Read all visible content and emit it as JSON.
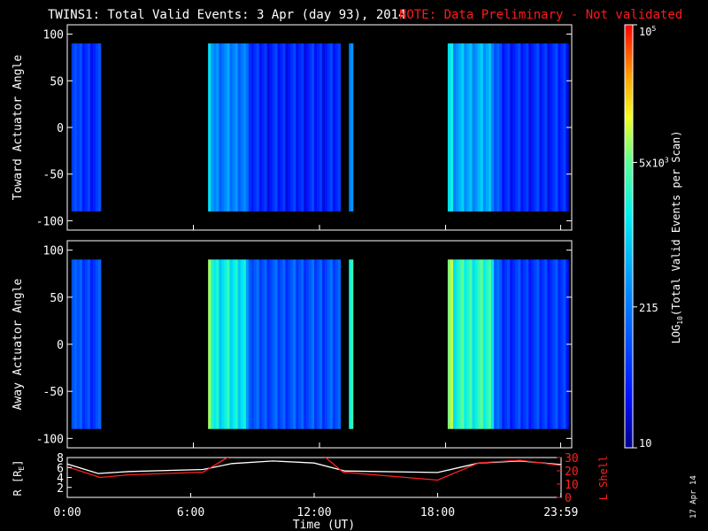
{
  "header": {
    "title": "TWINS1: Total Valid Events:  3 Apr (day  93), 2014",
    "note": "NOTE: Data Preliminary - Not validated",
    "note_color": "#ff1a1a"
  },
  "side_stamp": "17 Apr 14",
  "colorbar": {
    "label": "LOG10(Total Valid Events per Scan)",
    "label_main": "LOG",
    "label_sub": "10",
    "label_rest": "(Total Valid Events per Scan)",
    "ticks": [
      {
        "label": "10",
        "value": 10
      },
      {
        "label": "215",
        "value": 215
      },
      {
        "label": "5x10",
        "sup": "3",
        "value": 5000
      },
      {
        "label": "10",
        "sup": "5",
        "value": 100000
      }
    ],
    "range": [
      10,
      100000
    ],
    "scale": "log"
  },
  "chart_data": [
    {
      "type": "heatmap",
      "ylabel": "Toward Actuator Angle",
      "ylim": [
        -110,
        110
      ],
      "y_ticks": [
        100,
        50,
        0,
        -50,
        -100
      ],
      "x_ticks": [
        "0:00",
        "6:00",
        "12:00",
        "18:00",
        "23:59"
      ],
      "xlim_hours": [
        0,
        24
      ],
      "data_y_range": [
        -90,
        90
      ],
      "segments": [
        {
          "start_hour": 0.2,
          "end_hour": 1.6,
          "level": 0.18
        },
        {
          "start_hour": 6.7,
          "end_hour": 8.5,
          "level": 0.35
        },
        {
          "start_hour": 8.5,
          "end_hour": 13.0,
          "level": 0.16
        },
        {
          "start_hour": 13.4,
          "end_hour": 13.6,
          "level": 0.22
        },
        {
          "start_hour": 18.1,
          "end_hour": 20.3,
          "level": 0.42
        },
        {
          "start_hour": 20.3,
          "end_hour": 23.85,
          "level": 0.17
        }
      ]
    },
    {
      "type": "heatmap",
      "ylabel": "Away Actuator Angle",
      "ylim": [
        -110,
        110
      ],
      "y_ticks": [
        100,
        50,
        0,
        -50,
        -100
      ],
      "x_ticks": [
        "0:00",
        "6:00",
        "12:00",
        "18:00",
        "23:59"
      ],
      "xlim_hours": [
        0,
        24
      ],
      "data_y_range": [
        -90,
        90
      ],
      "segments": [
        {
          "start_hour": 0.2,
          "end_hour": 1.6,
          "level": 0.22
        },
        {
          "start_hour": 6.7,
          "end_hour": 8.5,
          "level": 0.55
        },
        {
          "start_hour": 8.5,
          "end_hour": 13.0,
          "level": 0.25
        },
        {
          "start_hour": 13.4,
          "end_hour": 13.6,
          "level": 0.45
        },
        {
          "start_hour": 18.1,
          "end_hour": 20.3,
          "level": 0.6
        },
        {
          "start_hour": 20.3,
          "end_hour": 23.85,
          "level": 0.2
        }
      ]
    },
    {
      "type": "line",
      "xlabel": "Time (UT)",
      "x_ticks": [
        "0:00",
        "6:00",
        "12:00",
        "18:00",
        "23:59"
      ],
      "xlim_hours": [
        0,
        24
      ],
      "left_axis": {
        "label": "R [RE]",
        "label_main": "R [R",
        "label_sub": "E",
        "label_end": "]",
        "ylim": [
          0,
          8
        ],
        "ticks": [
          8,
          6,
          4,
          2
        ]
      },
      "right_axis": {
        "label": "L Shell",
        "ylim": [
          0,
          30
        ],
        "ticks": [
          30,
          20,
          10,
          0
        ],
        "color": "#ff2020"
      },
      "series": [
        {
          "name": "R",
          "color": "#ffffff",
          "axis": "left",
          "x": [
            0,
            1.5,
            3,
            6.6,
            8.0,
            10.0,
            12.0,
            13.5,
            18.0,
            20.0,
            22.0,
            23.99
          ],
          "y": [
            6.7,
            4.8,
            5.2,
            5.6,
            6.8,
            7.3,
            6.9,
            5.3,
            5.0,
            6.9,
            7.3,
            6.6
          ]
        },
        {
          "name": "L Shell",
          "color": "#ff2020",
          "axis": "right",
          "x": [
            0,
            1.6,
            3.0,
            6.6,
            8.0,
            12.4,
            13.4,
            18.0,
            20.0,
            22.0,
            23.99
          ],
          "y": [
            23,
            15,
            17,
            19,
            32,
            32,
            19,
            13,
            26,
            28,
            24
          ]
        }
      ]
    }
  ]
}
